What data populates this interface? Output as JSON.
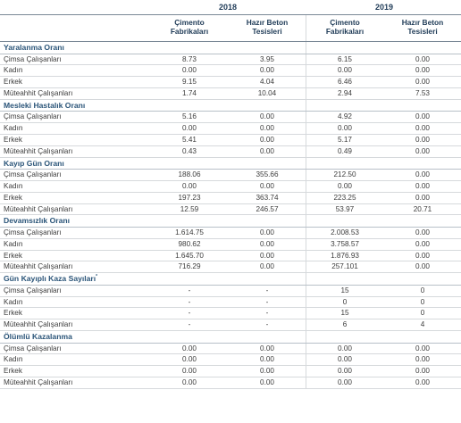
{
  "years": [
    "2018",
    "2019"
  ],
  "subheaders": [
    "Çimento\nFabrikaları",
    "Hazır Beton\nTesisleri",
    "Çimento\nFabrikaları",
    "Hazır Beton\nTesisleri"
  ],
  "sections": [
    {
      "title": "Yaralanma Oranı",
      "rows": [
        {
          "label": "Çimsa Çalışanları",
          "values": [
            "8.73",
            "3.95",
            "6.15",
            "0.00"
          ]
        },
        {
          "label": "Kadın",
          "values": [
            "0.00",
            "0.00",
            "0.00",
            "0.00"
          ]
        },
        {
          "label": "Erkek",
          "values": [
            "9.15",
            "4.04",
            "6.46",
            "0.00"
          ]
        },
        {
          "label": "Müteahhit Çalışanları",
          "values": [
            "1.74",
            "10.04",
            "2.94",
            "7.53"
          ]
        }
      ]
    },
    {
      "title": "Mesleki Hastalık Oranı",
      "rows": [
        {
          "label": "Çimsa Çalışanları",
          "values": [
            "5.16",
            "0.00",
            "4.92",
            "0.00"
          ]
        },
        {
          "label": "Kadın",
          "values": [
            "0.00",
            "0.00",
            "0.00",
            "0.00"
          ]
        },
        {
          "label": "Erkek",
          "values": [
            "5.41",
            "0.00",
            "5.17",
            "0.00"
          ]
        },
        {
          "label": "Müteahhit Çalışanları",
          "values": [
            "0.43",
            "0.00",
            "0.49",
            "0.00"
          ]
        }
      ]
    },
    {
      "title": "Kayıp Gün Oranı",
      "rows": [
        {
          "label": "Çimsa Çalışanları",
          "values": [
            "188.06",
            "355.66",
            "212.50",
            "0.00"
          ]
        },
        {
          "label": "Kadın",
          "values": [
            "0.00",
            "0.00",
            "0.00",
            "0.00"
          ]
        },
        {
          "label": "Erkek",
          "values": [
            "197.23",
            "363.74",
            "223.25",
            "0.00"
          ]
        },
        {
          "label": "Müteahhit Çalışanları",
          "values": [
            "12.59",
            "246.57",
            "53.97",
            "20.71"
          ]
        }
      ]
    },
    {
      "title": "Devamsızlık Oranı",
      "rows": [
        {
          "label": "Çimsa Çalışanları",
          "values": [
            "1.614.75",
            "0.00",
            "2.008.53",
            "0.00"
          ]
        },
        {
          "label": "Kadın",
          "values": [
            "980.62",
            "0.00",
            "3.758.57",
            "0.00"
          ]
        },
        {
          "label": "Erkek",
          "values": [
            "1.645.70",
            "0.00",
            "1.876.93",
            "0.00"
          ]
        },
        {
          "label": "Müteahhit Çalışanları",
          "values": [
            "716.29",
            "0.00",
            "257.101",
            "0.00"
          ]
        }
      ]
    },
    {
      "title": "Gün Kayıplı Kaza Sayıları",
      "title_sup": "*",
      "rows": [
        {
          "label": "Çimsa Çalışanları",
          "values": [
            "-",
            "-",
            "15",
            "0"
          ]
        },
        {
          "label": "Kadın",
          "values": [
            "-",
            "-",
            "0",
            "0"
          ]
        },
        {
          "label": "Erkek",
          "values": [
            "-",
            "-",
            "15",
            "0"
          ]
        },
        {
          "label": "Müteahhit Çalışanları",
          "values": [
            "-",
            "-",
            "6",
            "4"
          ]
        }
      ]
    },
    {
      "title": "Ölümlü Kazalanma",
      "rows": [
        {
          "label": "Çimsa Çalışanları",
          "values": [
            "0.00",
            "0.00",
            "0.00",
            "0.00"
          ]
        },
        {
          "label": "Kadın",
          "values": [
            "0.00",
            "0.00",
            "0.00",
            "0.00"
          ]
        },
        {
          "label": "Erkek",
          "values": [
            "0.00",
            "0.00",
            "0.00",
            "0.00"
          ]
        },
        {
          "label": "Müteahhit Çalışanları",
          "values": [
            "0.00",
            "0.00",
            "0.00",
            "0.00"
          ]
        }
      ]
    }
  ]
}
